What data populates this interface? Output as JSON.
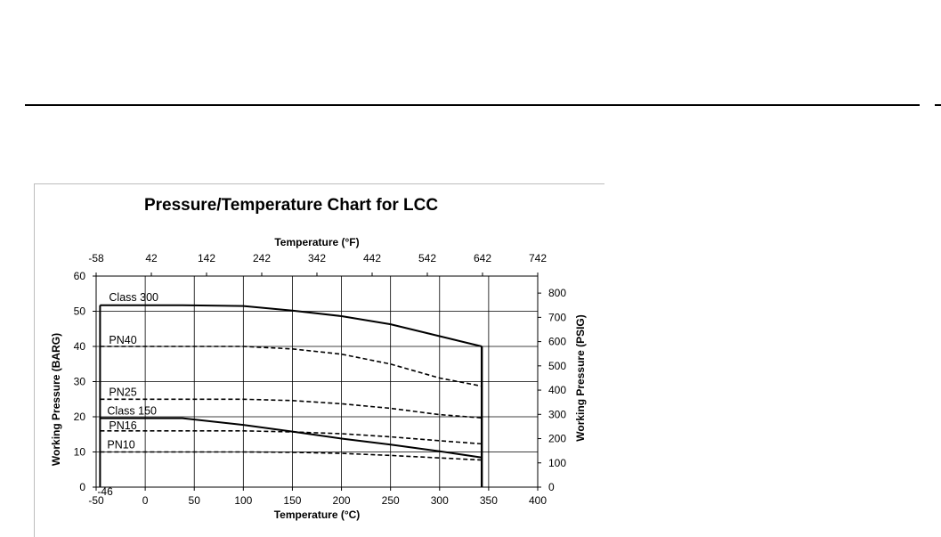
{
  "chart_data": {
    "type": "line",
    "title": "Pressure/Temperature Chart for LCC",
    "xlabel": "Temperature (°C)",
    "ylabel": "Working Pressure (BARG)",
    "x2label": "Temperature (°F)",
    "y2label": "Working Pressure (PSIG)",
    "xlim": [
      -50,
      400
    ],
    "ylim": [
      0,
      60
    ],
    "x2_ticks": [
      "-58",
      "42",
      "142",
      "242",
      "342",
      "442",
      "542",
      "642",
      "742"
    ],
    "y2_ticks": [
      "0",
      "100",
      "200",
      "300",
      "400",
      "500",
      "600",
      "700",
      "800"
    ],
    "x_ticks": [
      "-50",
      "0",
      "50",
      "100",
      "150",
      "200",
      "250",
      "300",
      "350",
      "400"
    ],
    "y_ticks": [
      "0",
      "10",
      "20",
      "30",
      "40",
      "50",
      "60"
    ],
    "corner_label": "-46",
    "grid": true,
    "series": [
      {
        "name": "Class 300",
        "style": "solid",
        "x": [
          -46,
          38,
          100,
          150,
          200,
          250,
          300,
          343
        ],
        "y": [
          51.7,
          51.7,
          51.5,
          50.2,
          48.6,
          46.3,
          42.9,
          40.0
        ]
      },
      {
        "name": "PN40",
        "style": "dashed",
        "x": [
          -46,
          100,
          150,
          200,
          250,
          300,
          343
        ],
        "y": [
          40.0,
          40.0,
          39.3,
          37.8,
          35.0,
          31.0,
          28.7
        ]
      },
      {
        "name": "PN25",
        "style": "dashed",
        "x": [
          -46,
          100,
          150,
          200,
          250,
          300,
          343
        ],
        "y": [
          25.0,
          25.0,
          24.6,
          23.7,
          22.4,
          20.6,
          19.7
        ]
      },
      {
        "name": "Class 150",
        "style": "solid",
        "x": [
          -46,
          38,
          100,
          150,
          200,
          250,
          300,
          343
        ],
        "y": [
          19.6,
          19.6,
          17.7,
          15.8,
          13.8,
          12.1,
          10.2,
          8.4
        ]
      },
      {
        "name": "PN16",
        "style": "dashed",
        "x": [
          -46,
          100,
          150,
          200,
          250,
          300,
          343
        ],
        "y": [
          16.0,
          16.0,
          15.7,
          15.2,
          14.3,
          13.2,
          12.3
        ]
      },
      {
        "name": "PN10",
        "style": "dashed",
        "x": [
          -46,
          100,
          150,
          200,
          250,
          300,
          343
        ],
        "y": [
          10.0,
          10.0,
          9.9,
          9.6,
          9.0,
          8.3,
          7.7
        ]
      }
    ],
    "drop_line": {
      "x": 343,
      "y_top": 40.0,
      "y_bottom": 0
    }
  }
}
